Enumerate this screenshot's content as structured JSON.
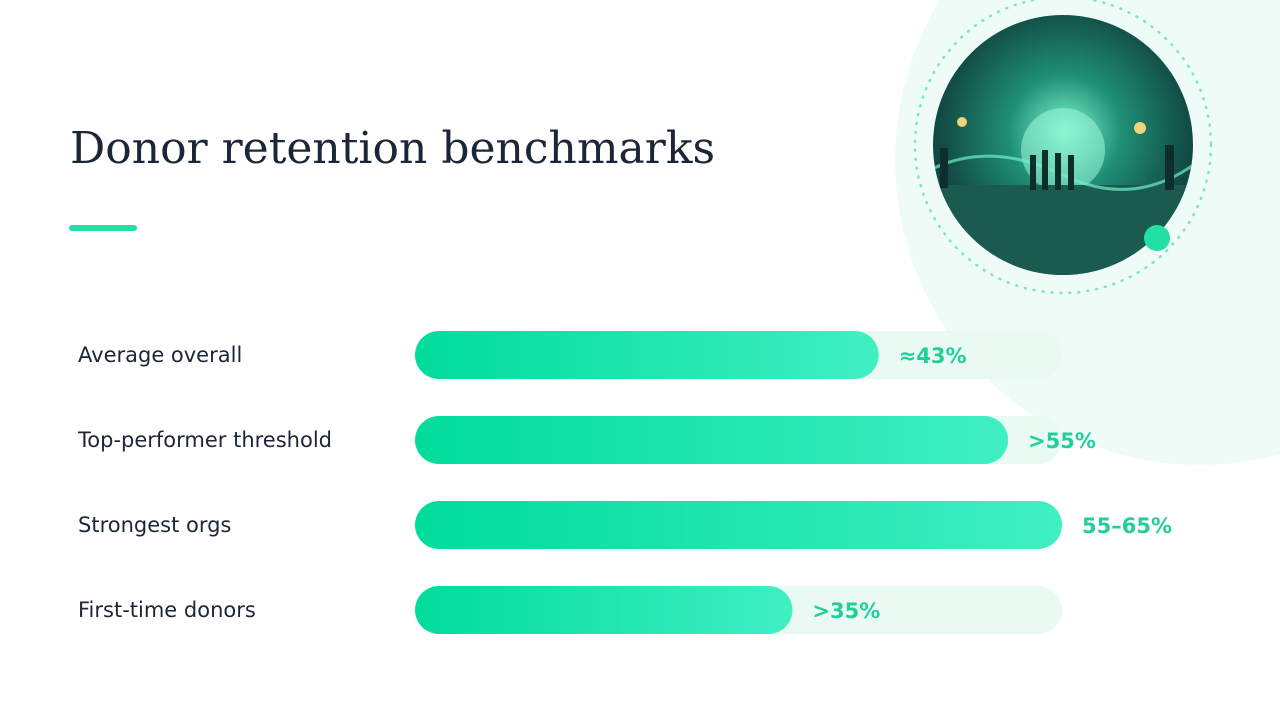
{
  "chart_data": {
    "type": "hbar",
    "title": "Donor retention benchmarks",
    "categories": [
      "Average overall",
      "Top-performer threshold",
      "Strongest orgs",
      "First-time donors"
    ],
    "values": [
      43,
      55,
      60,
      35
    ],
    "value_labels": [
      "≈43%",
      ">55%",
      "55–65%",
      ">35%"
    ],
    "xlim": [
      0,
      60
    ],
    "color": "#1de4a8"
  }
}
